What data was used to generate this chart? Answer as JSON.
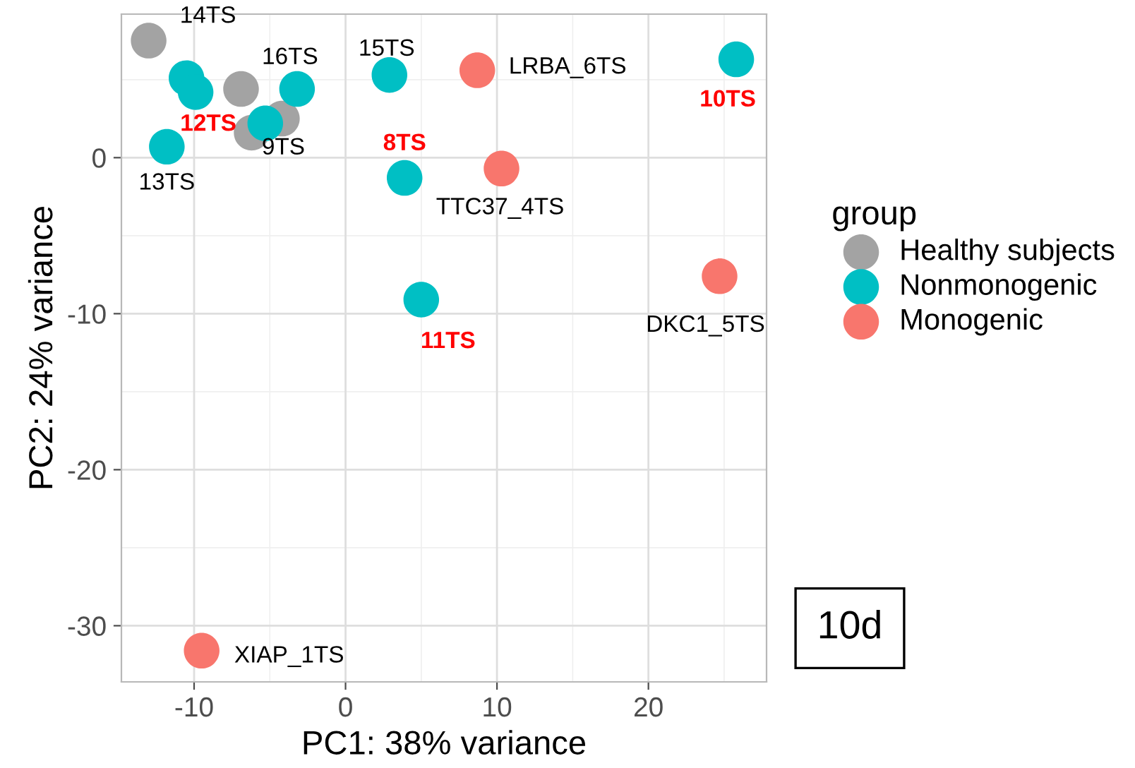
{
  "chart_data": {
    "type": "scatter",
    "xlabel": "PC1: 38% variance",
    "ylabel": "PC2: 24% variance",
    "legend_title": "group",
    "series": [
      {
        "name": "Healthy subjects",
        "color": "#a3a3a3",
        "x": [
          -13.0,
          -6.9,
          -6.2,
          -4.2
        ],
        "values": [
          7.5,
          4.4,
          1.6,
          2.5
        ]
      },
      {
        "name": "Nonmonogenic",
        "color": "#00bfc4",
        "x": [
          -10.5,
          -9.9,
          -11.8,
          -3.2,
          -5.3,
          2.9,
          3.9,
          5.0,
          25.8
        ],
        "values": [
          5.1,
          4.2,
          0.7,
          4.4,
          2.2,
          5.3,
          -1.3,
          -9.1,
          6.3
        ]
      },
      {
        "name": "Monogenic",
        "color": "#f8766d",
        "x": [
          8.7,
          10.3,
          24.7,
          -9.5
        ],
        "values": [
          5.6,
          -0.7,
          -7.6,
          -31.6
        ]
      }
    ],
    "annotations": [
      {
        "text": "14TS",
        "x": -13.0,
        "y": 7.5
      },
      {
        "text": "16TS",
        "x": -3.2,
        "y": 4.4
      },
      {
        "text": "15TS",
        "x": 2.9,
        "y": 5.3
      },
      {
        "text": "12TS",
        "x": -9.9,
        "y": 4.2
      },
      {
        "text": "9TS",
        "x": -4.2,
        "y": 2.5
      },
      {
        "text": "13TS",
        "x": -11.8,
        "y": 0.7
      },
      {
        "text": "8TS",
        "x": 3.9,
        "y": -1.3
      },
      {
        "text": "11TS",
        "x": 5.0,
        "y": -9.1
      },
      {
        "text": "10TS",
        "x": 25.8,
        "y": 6.3
      },
      {
        "text": "LRBA_6TS",
        "x": 8.7,
        "y": 5.6
      },
      {
        "text": "TTC37_4TS",
        "x": 10.3,
        "y": -0.7
      },
      {
        "text": "DKC1_5TS",
        "x": 24.7,
        "y": -7.6
      },
      {
        "text": "XIAP_1TS",
        "x": -9.5,
        "y": -31.6
      },
      "10d"
    ],
    "xlim": [
      -14.8,
      27.8
    ],
    "ylim": [
      -33.6,
      9.2
    ],
    "xticks": [
      -10,
      0,
      10,
      20
    ],
    "yticks": [
      -30,
      -20,
      -10,
      0
    ],
    "grid": true,
    "legend": "right",
    "marker": "circle"
  }
}
